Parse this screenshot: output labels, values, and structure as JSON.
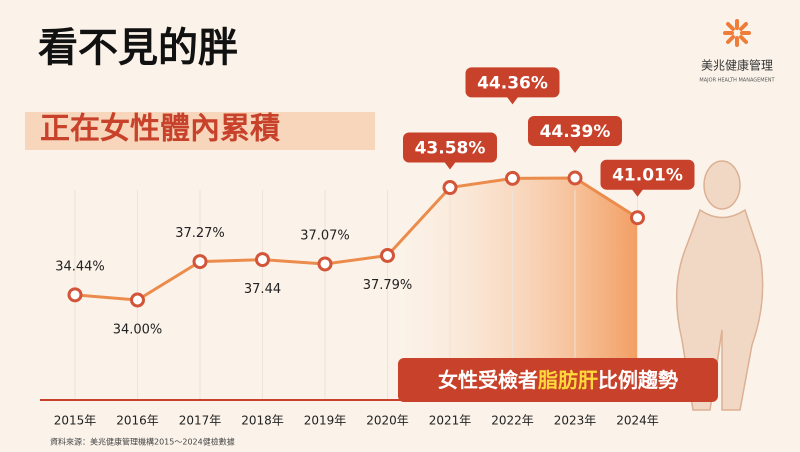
{
  "chart_data": {
    "type": "line",
    "title": "看不見的胖",
    "subtitle": "正在女性體內累積",
    "brand": "美兆健康管理",
    "brand_en": "MAJOR HEALTH MANAGEMENT",
    "annotation": [
      "女性受檢者",
      "脂肪肝",
      "比例趨勢"
    ],
    "source": "資料來源：美兆健康管理機構2015～2024健檢數據",
    "categories": [
      "2015年",
      "2016年",
      "2017年",
      "2018年",
      "2019年",
      "2020年",
      "2021年",
      "2022年",
      "2023年",
      "2024年"
    ],
    "values": [
      34.44,
      34.0,
      37.27,
      37.44,
      37.07,
      37.79,
      43.58,
      44.36,
      44.39,
      41.01
    ],
    "value_labels": [
      "34.44%",
      "34.00%",
      "37.27%",
      "37.44",
      "37.07%",
      "37.79%",
      "43.58%",
      "44.36%",
      "44.39%",
      "41.01%"
    ],
    "color": "#ec8c4c"
  }
}
